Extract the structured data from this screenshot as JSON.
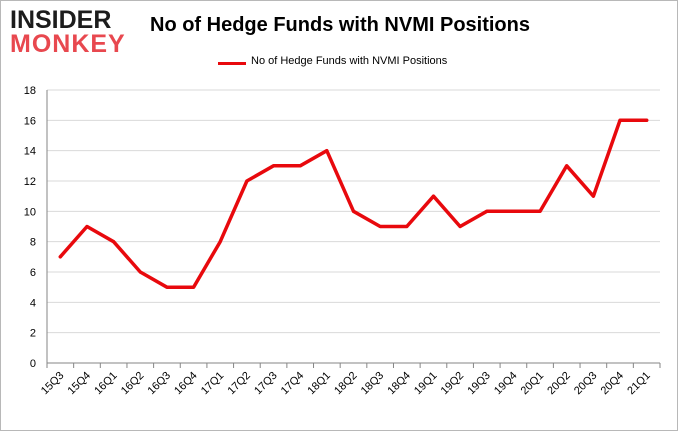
{
  "logo": {
    "line1": "INSIDER",
    "line2": "MONKEY"
  },
  "chart_data": {
    "type": "line",
    "title": "No of Hedge Funds with NVMI Positions",
    "categories": [
      "15Q3",
      "15Q4",
      "16Q1",
      "16Q2",
      "16Q3",
      "16Q4",
      "17Q1",
      "17Q2",
      "17Q3",
      "17Q4",
      "18Q1",
      "18Q2",
      "18Q3",
      "18Q4",
      "19Q1",
      "19Q2",
      "19Q3",
      "19Q4",
      "20Q1",
      "20Q2",
      "20Q3",
      "20Q4",
      "21Q1"
    ],
    "series": [
      {
        "name": "No of Hedge Funds with NVMI  Positions",
        "values": [
          7,
          9,
          8,
          6,
          5,
          5,
          8,
          12,
          13,
          13,
          14,
          10,
          9,
          9,
          11,
          9,
          10,
          10,
          10,
          13,
          11,
          16,
          16
        ]
      }
    ],
    "xlabel": "",
    "ylabel": "",
    "ylim": [
      0,
      18
    ],
    "yticks": [
      0,
      2,
      4,
      6,
      8,
      10,
      12,
      14,
      16,
      18
    ],
    "grid": true,
    "legend_position": "top",
    "colors": {
      "line": "#e8090d",
      "grid": "#d9d9d9",
      "axis": "#868686"
    }
  }
}
